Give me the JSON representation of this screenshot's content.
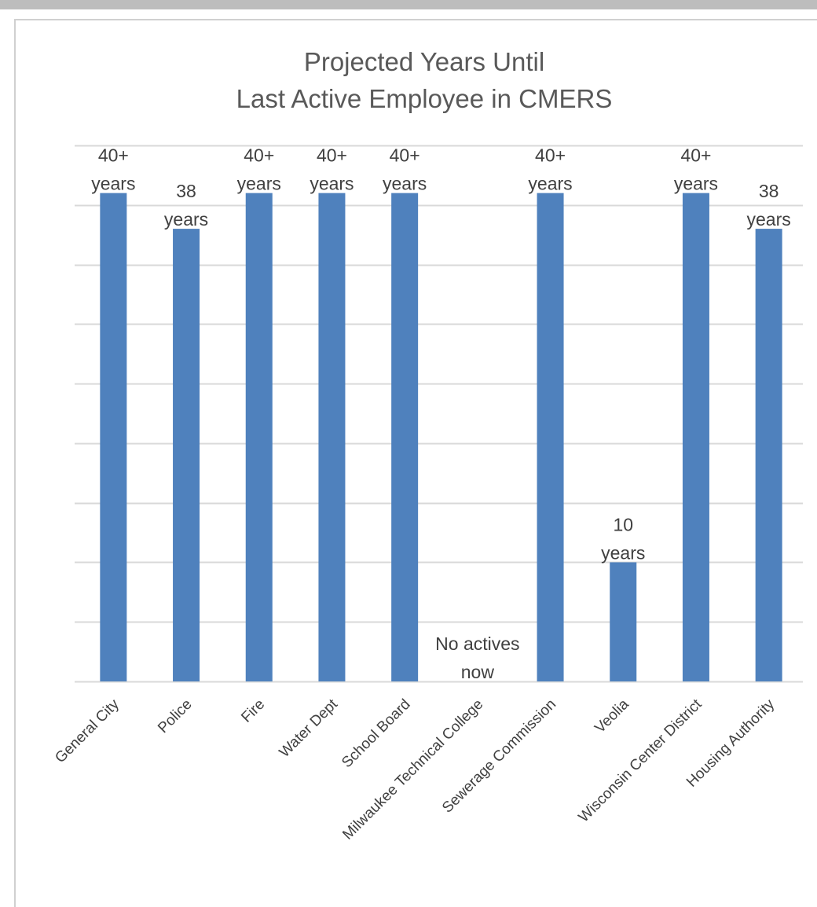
{
  "chart_data": {
    "type": "bar",
    "title_lines": [
      "Projected Years Until",
      "Last Active Employee in CMERS"
    ],
    "categories": [
      "General City",
      "Police",
      "Fire",
      "Water Dept",
      "School Board",
      "Milwaukee Technical College",
      "Sewerage Commission",
      "Veolia",
      "Wisconsin Center District",
      "Housing Authority"
    ],
    "values": [
      41,
      38,
      41,
      41,
      41,
      0,
      41,
      10,
      41,
      38
    ],
    "data_labels": [
      [
        "40+",
        "years"
      ],
      [
        "38",
        "years"
      ],
      [
        "40+",
        "years"
      ],
      [
        "40+",
        "years"
      ],
      [
        "40+",
        "years"
      ],
      [
        "No actives",
        "now"
      ],
      [
        "40+",
        "years"
      ],
      [
        "10",
        "years"
      ],
      [
        "40+",
        "years"
      ],
      [
        "38",
        "years"
      ]
    ],
    "ylim": [
      0,
      45
    ],
    "gridline_step": 5,
    "grid": true,
    "bar_color": "#4f81bd",
    "grid_color": "#d9d9d9"
  }
}
